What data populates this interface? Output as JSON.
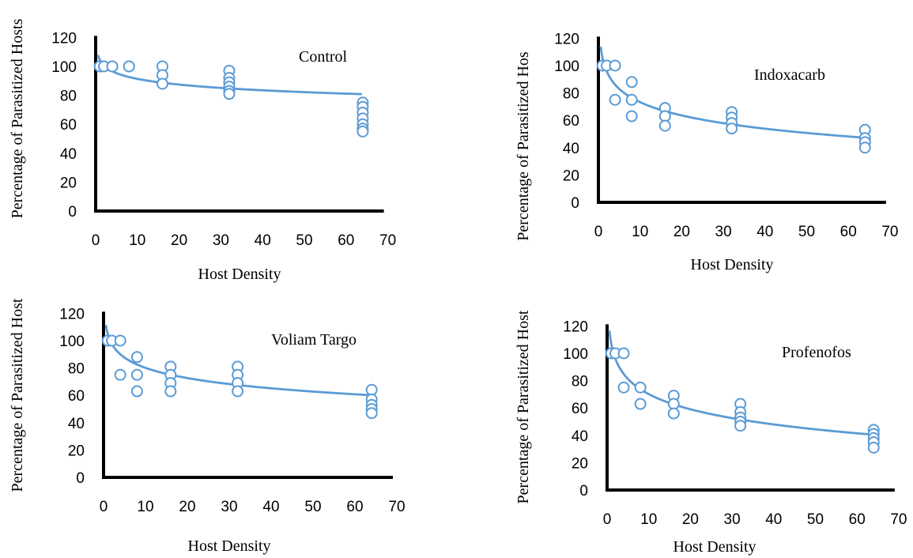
{
  "chart_data": [
    {
      "type": "scatter",
      "title": "Control",
      "xlabel": "Host Density",
      "ylabel": "Percentage of Parasitized Hosts",
      "xlim": [
        0,
        70
      ],
      "ylim": [
        0,
        120
      ],
      "xticks": [
        "0",
        "10",
        "20",
        "30",
        "40",
        "50",
        "60",
        "70"
      ],
      "yticks": [
        "0",
        "20",
        "40",
        "60",
        "80",
        "100",
        "120"
      ],
      "points": [
        [
          1,
          100
        ],
        [
          1,
          100
        ],
        [
          2,
          100
        ],
        [
          2,
          100
        ],
        [
          4,
          100
        ],
        [
          4,
          100
        ],
        [
          8,
          100
        ],
        [
          8,
          100
        ],
        [
          16,
          100
        ],
        [
          16,
          94
        ],
        [
          16,
          88
        ],
        [
          32,
          97
        ],
        [
          32,
          92
        ],
        [
          32,
          89
        ],
        [
          32,
          86
        ],
        [
          32,
          83
        ],
        [
          32,
          81
        ],
        [
          64,
          75
        ],
        [
          64,
          72
        ],
        [
          64,
          68
        ],
        [
          64,
          64
        ],
        [
          64,
          60
        ],
        [
          64,
          57
        ],
        [
          64,
          55
        ]
      ],
      "trendline": {
        "a": 104.5,
        "b": -5.7
      }
    },
    {
      "type": "scatter",
      "title": "Indoxacarb",
      "xlabel": "Host Density",
      "ylabel": "Percentage of Parasitized Hos",
      "xlim": [
        0,
        70
      ],
      "ylim": [
        0,
        120
      ],
      "xticks": [
        "0",
        "10",
        "20",
        "30",
        "40",
        "50",
        "60",
        "70"
      ],
      "yticks": [
        "0",
        "20",
        "40",
        "60",
        "80",
        "100",
        "120"
      ],
      "points": [
        [
          1,
          100
        ],
        [
          1,
          100
        ],
        [
          2,
          100
        ],
        [
          4,
          100
        ],
        [
          4,
          75
        ],
        [
          8,
          88
        ],
        [
          8,
          75
        ],
        [
          8,
          63
        ],
        [
          16,
          69
        ],
        [
          16,
          63
        ],
        [
          16,
          56
        ],
        [
          32,
          66
        ],
        [
          32,
          62
        ],
        [
          32,
          58
        ],
        [
          32,
          54
        ],
        [
          64,
          53
        ],
        [
          64,
          47
        ],
        [
          64,
          44
        ],
        [
          64,
          40
        ]
      ],
      "trendline": {
        "a": 105.5,
        "b": -14.0
      }
    },
    {
      "type": "scatter",
      "title": "Voliam Targo",
      "xlabel": "Host Density",
      "ylabel": "Percentage of Parasitized Host",
      "xlim": [
        0,
        70
      ],
      "ylim": [
        0,
        120
      ],
      "xticks": [
        "0",
        "10",
        "20",
        "30",
        "40",
        "50",
        "60",
        "70"
      ],
      "yticks": [
        "0",
        "20",
        "40",
        "60",
        "80",
        "100",
        "120"
      ],
      "points": [
        [
          1,
          100
        ],
        [
          1,
          100
        ],
        [
          2,
          100
        ],
        [
          4,
          100
        ],
        [
          4,
          75
        ],
        [
          8,
          88
        ],
        [
          8,
          75
        ],
        [
          8,
          63
        ],
        [
          16,
          81
        ],
        [
          16,
          75
        ],
        [
          16,
          69
        ],
        [
          16,
          63
        ],
        [
          32,
          81
        ],
        [
          32,
          75
        ],
        [
          32,
          69
        ],
        [
          32,
          63
        ],
        [
          64,
          64
        ],
        [
          64,
          57
        ],
        [
          64,
          53
        ],
        [
          64,
          50
        ],
        [
          64,
          47
        ]
      ],
      "trendline": {
        "a": 105.0,
        "b": -10.8
      }
    },
    {
      "type": "scatter",
      "title": "Profenofos",
      "xlabel": "Host Density",
      "ylabel": "Percentage of Parasitized Host",
      "xlim": [
        0,
        70
      ],
      "ylim": [
        0,
        120
      ],
      "xticks": [
        "0",
        "10",
        "20",
        "30",
        "40",
        "50",
        "60",
        "70"
      ],
      "yticks": [
        "0",
        "20",
        "40",
        "60",
        "80",
        "100",
        "120"
      ],
      "points": [
        [
          1,
          100
        ],
        [
          1,
          100
        ],
        [
          2,
          100
        ],
        [
          4,
          100
        ],
        [
          4,
          75
        ],
        [
          8,
          75
        ],
        [
          8,
          63
        ],
        [
          16,
          69
        ],
        [
          16,
          63
        ],
        [
          16,
          56
        ],
        [
          32,
          63
        ],
        [
          32,
          57
        ],
        [
          32,
          53
        ],
        [
          32,
          50
        ],
        [
          32,
          47
        ],
        [
          64,
          44
        ],
        [
          64,
          41
        ],
        [
          64,
          38
        ],
        [
          64,
          35
        ],
        [
          64,
          31
        ]
      ],
      "trendline": {
        "a": 107.0,
        "b": -16.0
      }
    }
  ]
}
